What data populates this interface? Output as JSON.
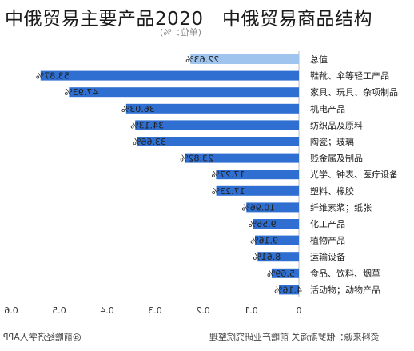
{
  "page": {
    "title": "中俄贸易主要产品2020　中俄贸易商品结构",
    "subtitle": "(单位：%)",
    "footer_left": "@前瞻经济学人APP",
    "footer_right": "资料来源：俄罗斯海关 前瞻产业研究院整理"
  },
  "chart_data": {
    "type": "bar",
    "orientation": "horizontal",
    "mirrored": true,
    "categories": [
      "总值",
      "鞋靴、伞等轻工产品",
      "家具、玩具、杂项制品",
      "机电产品",
      "纺织品及原料",
      "陶瓷；玻璃",
      "贱金属及制品",
      "光学、钟表、医疗设备",
      "塑料、橡胶",
      "纤维素浆；纸张",
      "化工产品",
      "植物产品",
      "运输设备",
      "食品、饮料、烟草",
      "活动物；动物产品"
    ],
    "values": [
      0.2263,
      0.5387,
      0.4793,
      0.3603,
      0.3413,
      0.3366,
      0.2382,
      0.1727,
      0.1723,
      0.1096,
      0.0956,
      0.0916,
      0.0861,
      0.0569,
      0.0416
    ],
    "value_labels": [
      "22.63%",
      "53.87%",
      "47.93%",
      "36.03%",
      "34.13%",
      "33.66%",
      "23.82%",
      "17.27%",
      "17.23%",
      "10.96%",
      "9.56%",
      "9.16%",
      "8.61%",
      "5.69%",
      "4.16%"
    ],
    "xlim": [
      0,
      0.6
    ],
    "xticks": [
      0.6,
      0.5,
      0.4,
      0.3,
      0.2,
      0.1,
      0
    ],
    "tick_labels": [
      "0.6",
      "0.5",
      "0.4",
      "0.3",
      "0.2",
      "0.1",
      "0"
    ],
    "colors": {
      "total": "#9fc4ee",
      "bar": "#2f6fd1",
      "grid": "#e6e6e6",
      "text": "#222222"
    },
    "grid": false
  }
}
